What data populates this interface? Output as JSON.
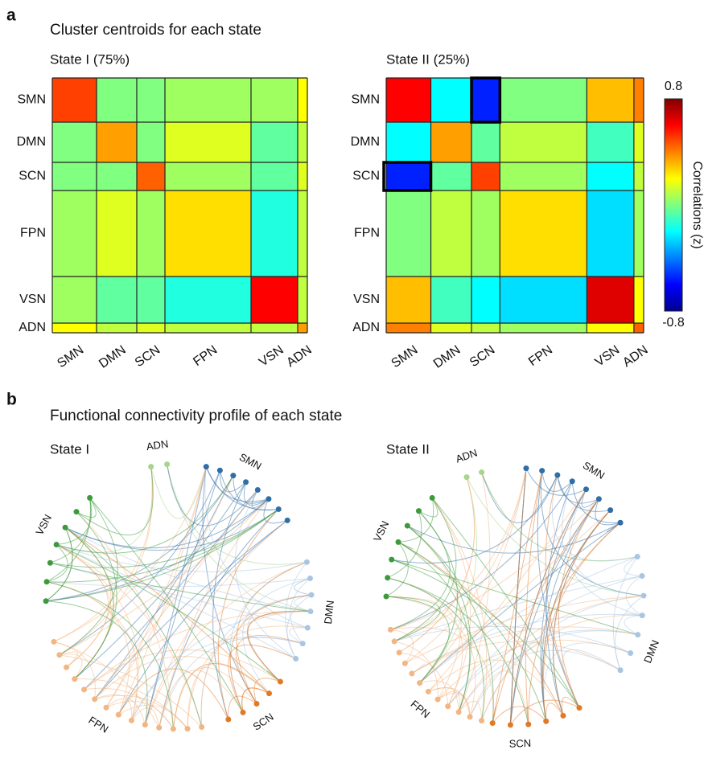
{
  "panel_labels": [
    "a",
    "b"
  ],
  "panel_titles": [
    "Cluster centroids for each state",
    "Functional connectivity profile of each state"
  ],
  "chart_data": [
    {
      "type": "heatmap",
      "title": "State I (75%)",
      "categories": [
        "SMN",
        "DMN",
        "SCN",
        "FPN",
        "VSN",
        "ADN"
      ],
      "values": [
        [
          0.5,
          0.0,
          0.0,
          0.05,
          0.05,
          0.2
        ],
        [
          0.0,
          0.35,
          0.0,
          0.15,
          -0.05,
          0.1
        ],
        [
          0.0,
          0.0,
          0.45,
          0.05,
          -0.05,
          0.15
        ],
        [
          0.05,
          0.15,
          0.05,
          0.25,
          -0.15,
          0.1
        ],
        [
          0.05,
          -0.05,
          -0.05,
          -0.15,
          0.6,
          0.1
        ],
        [
          0.2,
          0.1,
          0.15,
          0.1,
          0.1,
          0.35
        ]
      ],
      "clim": [
        -0.8,
        0.8
      ]
    },
    {
      "type": "heatmap",
      "title": "State II (25%)",
      "categories": [
        "SMN",
        "DMN",
        "SCN",
        "FPN",
        "VSN",
        "ADN"
      ],
      "values": [
        [
          0.6,
          -0.2,
          -0.55,
          0.0,
          0.3,
          0.4
        ],
        [
          -0.2,
          0.35,
          -0.05,
          0.1,
          -0.1,
          0.15
        ],
        [
          -0.55,
          -0.05,
          0.5,
          0.05,
          -0.2,
          0.1
        ],
        [
          0.0,
          0.1,
          0.05,
          0.25,
          -0.25,
          0.05
        ],
        [
          0.3,
          -0.1,
          -0.2,
          -0.25,
          0.65,
          0.2
        ],
        [
          0.4,
          0.15,
          0.1,
          0.05,
          0.2,
          0.45
        ]
      ],
      "clim": [
        -0.8,
        0.8
      ],
      "colorbar": {
        "label": "Correlations (z)",
        "ticks": [
          0.8,
          -0.8
        ]
      }
    }
  ],
  "circle_plots": [
    {
      "title": "State I",
      "networks": [
        "ADN",
        "SMN",
        "DMN",
        "SCN",
        "FPN",
        "VSN"
      ]
    },
    {
      "title": "State II",
      "networks": [
        "ADN",
        "SMN",
        "DMN",
        "SCN",
        "FPN",
        "VSN"
      ]
    }
  ]
}
